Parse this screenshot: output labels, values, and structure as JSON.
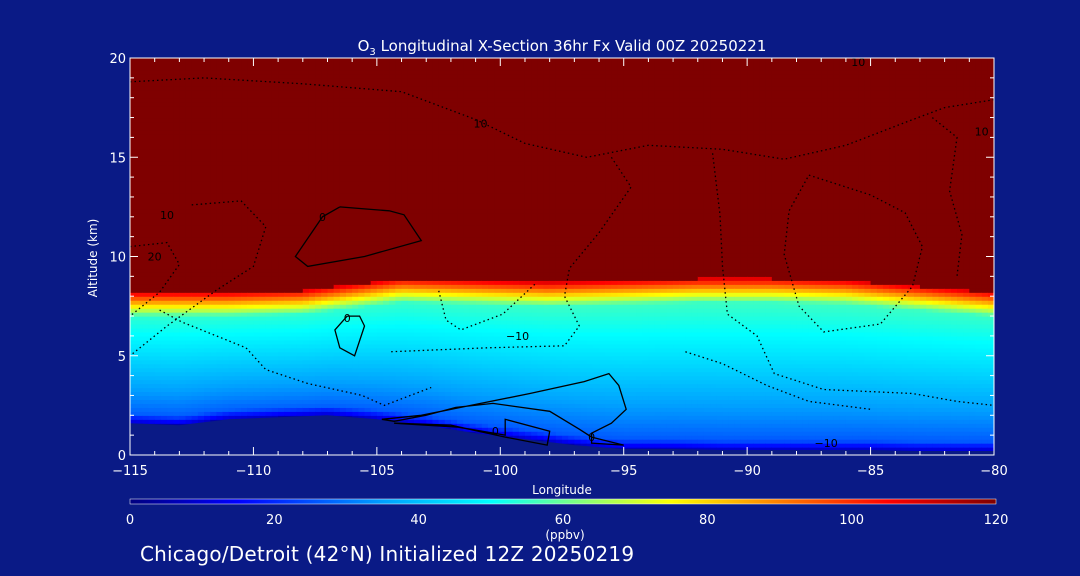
{
  "chart_data": {
    "type": "heatmap",
    "title": {
      "species": "O",
      "subscript": "3",
      "text": " Longitudinal X-Section 36hr  Fx Valid 00Z 20250221"
    },
    "xlabel": "Longitude",
    "ylabel": "Altitude (km)",
    "xlim": [
      -115,
      -80
    ],
    "ylim": [
      0,
      20
    ],
    "x_ticks": [
      -115,
      -110,
      -105,
      -100,
      -95,
      -90,
      -85,
      -80
    ],
    "x_tick_labels": [
      "−115",
      "−110",
      "−105",
      "−100",
      "−95",
      "−90",
      "−85",
      "−80"
    ],
    "y_ticks": [
      0,
      5,
      10,
      15,
      20
    ],
    "y_tick_labels": [
      "0",
      "5",
      "10",
      "15",
      "20"
    ],
    "colorbar": {
      "label": "(ppbv)",
      "range": [
        0,
        120
      ],
      "ticks": [
        0,
        20,
        40,
        60,
        80,
        100,
        120
      ],
      "tick_labels": [
        "0",
        "20",
        "40",
        "60",
        "80",
        "100",
        "120"
      ],
      "stops": [
        {
          "value": 0,
          "color": "#00007f"
        },
        {
          "value": 15,
          "color": "#0000ff"
        },
        {
          "value": 35,
          "color": "#00a0ff"
        },
        {
          "value": 50,
          "color": "#00ffff"
        },
        {
          "value": 62,
          "color": "#7fff7f"
        },
        {
          "value": 75,
          "color": "#ffff00"
        },
        {
          "value": 90,
          "color": "#ff7f00"
        },
        {
          "value": 105,
          "color": "#ff0000"
        },
        {
          "value": 120,
          "color": "#7f0000"
        }
      ]
    },
    "tropopause_altitude_km": {
      "x": [
        -115,
        -111,
        -108,
        -106,
        -104,
        -101,
        -98,
        -95,
        -92,
        -89,
        -86,
        -83,
        -80
      ],
      "y": [
        8.2,
        8.2,
        8.3,
        8.6,
        8.9,
        8.8,
        8.7,
        8.8,
        8.9,
        8.9,
        8.8,
        8.5,
        8.2
      ]
    },
    "terrain_km": {
      "x": [
        -115,
        -113,
        -111,
        -109,
        -107,
        -105,
        -103,
        -101,
        -99,
        -97,
        -95,
        -93,
        -91,
        -89,
        -87,
        -85,
        -83,
        -81,
        -80
      ],
      "y": [
        1.6,
        1.5,
        1.8,
        1.9,
        2.0,
        1.8,
        1.5,
        1.1,
        0.8,
        0.5,
        0.3,
        0.3,
        0.25,
        0.25,
        0.25,
        0.25,
        0.2,
        0.2,
        0.2
      ]
    },
    "contour_labels": [
      {
        "text": "10",
        "x": -100.8,
        "y": 16.7
      },
      {
        "text": "10",
        "x": -85.5,
        "y": 19.8
      },
      {
        "text": "10",
        "x": -80.5,
        "y": 16.3
      },
      {
        "text": "10",
        "x": -113.5,
        "y": 12.1
      },
      {
        "text": "20",
        "x": -114.0,
        "y": 10.0
      },
      {
        "text": "0",
        "x": -107.2,
        "y": 12.0
      },
      {
        "text": "0",
        "x": -106.2,
        "y": 6.9
      },
      {
        "text": "−10",
        "x": -99.3,
        "y": 6.0
      },
      {
        "text": "0",
        "x": -100.2,
        "y": 1.2
      },
      {
        "text": "0",
        "x": -96.3,
        "y": 0.9
      },
      {
        "text": "−10",
        "x": -86.8,
        "y": 0.6
      }
    ],
    "grid": false
  },
  "caption": "Chicago/Detroit (42°N) Initialized 12Z 20250219"
}
